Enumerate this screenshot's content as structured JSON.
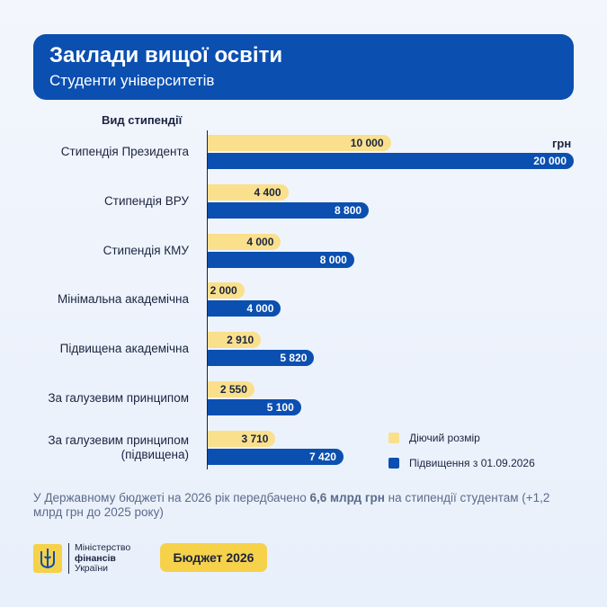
{
  "chart_data": {
    "type": "bar",
    "orientation": "horizontal",
    "title": "Заклади вищої освіти",
    "subtitle": "Студенти університетів",
    "axis_title": "Вид стипендії",
    "unit": "грн",
    "categories": [
      "Стипендія Президента",
      "Стипендія ВРУ",
      "Стипендія КМУ",
      "Мінімальна академічна",
      "Підвищена академічна",
      "За галузевим принципом",
      "За галузевим принципом (підвищена)"
    ],
    "series": [
      {
        "name": "Діючий розмір",
        "color": "#fae08c",
        "text_color": "#1a2440",
        "values": [
          10000,
          4400,
          4000,
          2000,
          2910,
          2550,
          3710
        ],
        "value_labels": [
          "10 000",
          "4 400",
          "4 000",
          "2 000",
          "2 910",
          "2 550",
          "3 710"
        ]
      },
      {
        "name": "Підвищення з 01.09.2026",
        "color": "#0b4fb0",
        "text_color": "#ffffff",
        "values": [
          20000,
          8800,
          8000,
          4000,
          5820,
          5100,
          7420
        ],
        "value_labels": [
          "20 000",
          "8 800",
          "8 000",
          "4 000",
          "5 820",
          "5 100",
          "7 420"
        ]
      }
    ],
    "legend": "bottom-right"
  },
  "footer": {
    "text_before": "У Державному бюджеті на 2026 рік передбачено ",
    "bold": "6,6 млрд грн",
    "text_after": " на стипендії студентам (+1,2 млрд грн до 2025 року)"
  },
  "logo": {
    "lines": [
      "Міністерство",
      "фінансів",
      "України"
    ]
  },
  "button": {
    "label": "Бюджет 2026"
  }
}
